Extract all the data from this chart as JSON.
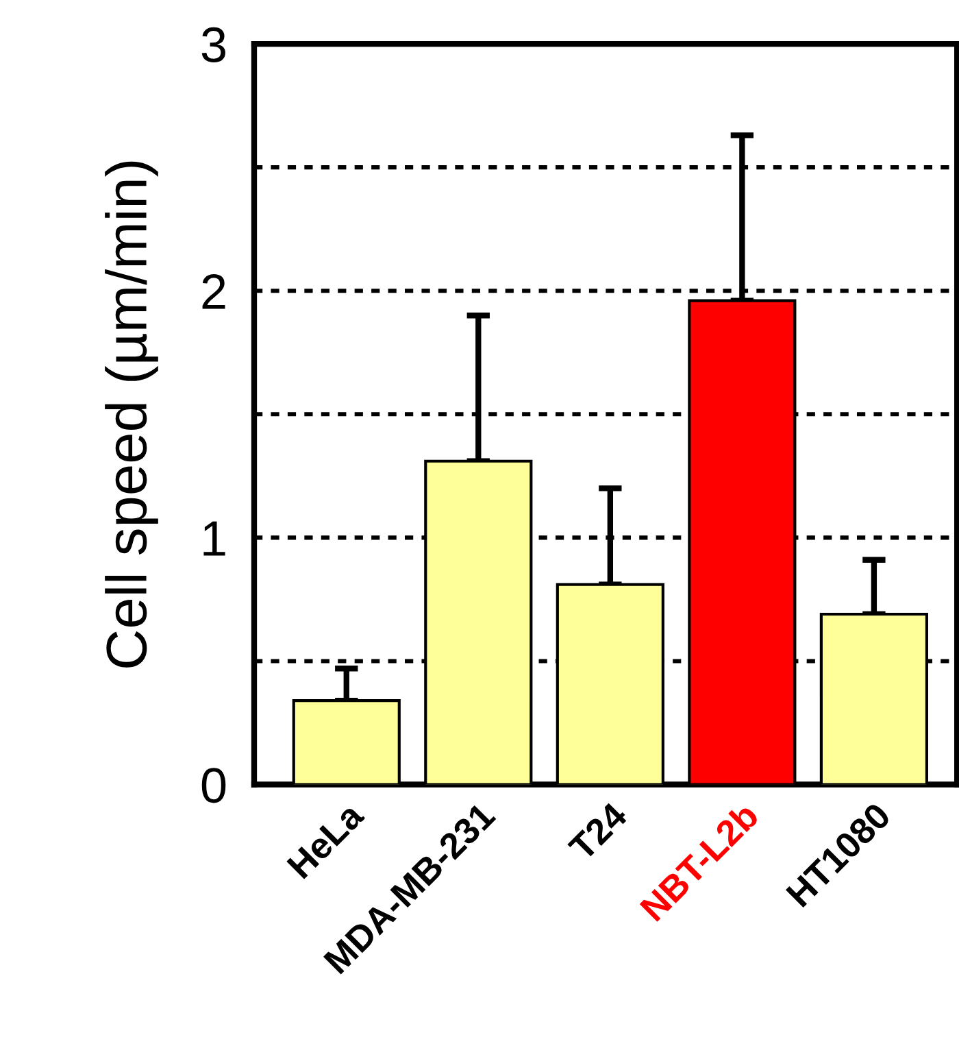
{
  "chart_data": {
    "type": "bar",
    "ylabel": "Cell speed (µm/min)",
    "categories": [
      "HeLa",
      "MDA-MB-231",
      "T24",
      "NBT-L2b",
      "HT1080"
    ],
    "values": [
      0.34,
      1.31,
      0.81,
      1.96,
      0.69
    ],
    "colors": [
      "#ffff99",
      "#ffff99",
      "#ffff99",
      "#ff0000",
      "#ffff99"
    ],
    "errors": [
      [
        0.34,
        0.47
      ],
      [
        1.31,
        1.9
      ],
      [
        0.81,
        1.2
      ],
      [
        1.96,
        2.63
      ],
      [
        0.69,
        0.91
      ]
    ],
    "ylim": [
      0,
      3
    ],
    "yticks": [
      0,
      {
        "value": 0.5,
        "label": null
      },
      1,
      {
        "value": 1.5,
        "label": null
      },
      2,
      {
        "value": 2.5,
        "label": null
      },
      3
    ],
    "grid": "y",
    "legend": false
  }
}
